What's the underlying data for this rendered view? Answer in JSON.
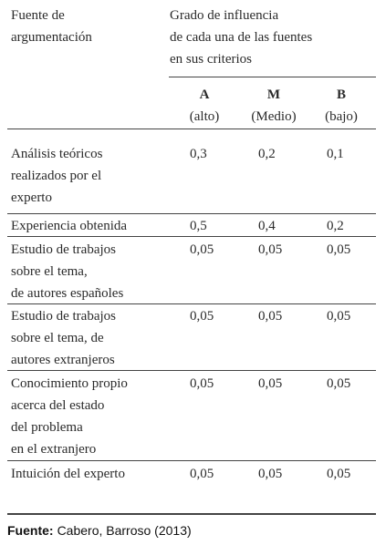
{
  "header": {
    "source_col": [
      "Fuente de",
      "argumentación"
    ],
    "influence": [
      "Grado de influencia",
      "de cada una de las fuentes",
      "en sus criterios"
    ],
    "levels": [
      {
        "letter": "A",
        "label": "(alto)"
      },
      {
        "letter": "M",
        "label": "(Medio)"
      },
      {
        "letter": "B",
        "label": "(bajo)"
      }
    ]
  },
  "table": {
    "rows": [
      {
        "source": [
          "Análisis teóricos",
          "realizados por el",
          "experto"
        ],
        "values": [
          "0,3",
          "0,2",
          "0,1"
        ]
      },
      {
        "source": [
          "Experiencia obtenida"
        ],
        "values": [
          "0,5",
          "0,4",
          "0,2"
        ]
      },
      {
        "source": [
          "Estudio de trabajos",
          "sobre el tema,",
          "de autores españoles"
        ],
        "values": [
          "0,05",
          "0,05",
          "0,05"
        ]
      },
      {
        "source": [
          "Estudio de trabajos",
          "sobre el tema, de",
          "autores extranjeros"
        ],
        "values": [
          "0,05",
          "0,05",
          "0,05"
        ]
      },
      {
        "source": [
          "Conocimiento propio",
          "acerca del estado",
          "del problema",
          "en el extranjero"
        ],
        "values": [
          "0,05",
          "0,05",
          "0,05"
        ]
      },
      {
        "source": [
          "Intuición del experto"
        ],
        "values": [
          "0,05",
          "0,05",
          "0,05"
        ]
      }
    ]
  },
  "footer": {
    "label": "Fuente:",
    "text": "Cabero, Barroso (2013)"
  }
}
